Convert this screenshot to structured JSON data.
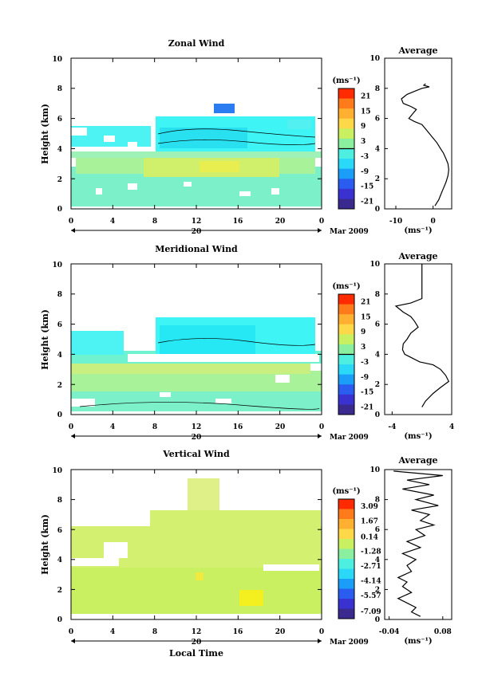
{
  "chart_data": [
    {
      "type": "heatmap",
      "title": "Zonal Wind",
      "ylabel": "Height (km)",
      "xlabel": "",
      "xlim": [
        0,
        24
      ],
      "ylim": [
        0,
        10
      ],
      "xticks": [
        "0",
        "4",
        "8",
        "12",
        "16",
        "20",
        "0"
      ],
      "yticks": [
        "0",
        "2",
        "4",
        "6",
        "8",
        "10"
      ],
      "date_label": "20",
      "month_label": "Mar 2009",
      "colorbar": {
        "unit": "(ms⁻¹)",
        "ticks": [
          "21",
          "15",
          "9",
          "3",
          "-3",
          "-9",
          "-15",
          "-21"
        ],
        "min": -24,
        "max": 24
      }
    },
    {
      "type": "line",
      "title": "Average",
      "xlabel": "(ms⁻¹)",
      "xlim": [
        -13,
        5
      ],
      "ylim": [
        0,
        10
      ],
      "xticks": [
        "-10",
        "0"
      ],
      "yticks": [
        "0",
        "2",
        "4",
        "6",
        "8",
        "10"
      ],
      "x": [
        -2,
        -2.5,
        -1,
        -3,
        -5,
        -7,
        -8.5,
        -8,
        -6,
        -4.5,
        -5.5,
        -6.5,
        -5,
        -3,
        -2,
        -1,
        0,
        1,
        2,
        2.8,
        3.5,
        4,
        4.2,
        4,
        3.5,
        3,
        2.5,
        2,
        1.5,
        1,
        0.5
      ],
      "y": [
        8.3,
        8.2,
        8.1,
        8.0,
        7.8,
        7.6,
        7.3,
        7.0,
        6.8,
        6.6,
        6.3,
        6.0,
        5.8,
        5.6,
        5.3,
        5.0,
        4.7,
        4.4,
        4.0,
        3.7,
        3.3,
        3.0,
        2.6,
        2.2,
        1.8,
        1.5,
        1.2,
        0.9,
        0.6,
        0.4,
        0.2
      ]
    },
    {
      "type": "heatmap",
      "title": "Meridional Wind",
      "ylabel": "Height (km)",
      "xlabel": "",
      "xlim": [
        0,
        24
      ],
      "ylim": [
        0,
        10
      ],
      "xticks": [
        "0",
        "4",
        "8",
        "12",
        "16",
        "20",
        "0"
      ],
      "yticks": [
        "0",
        "2",
        "4",
        "6",
        "8",
        "10"
      ],
      "date_label": "20",
      "month_label": "Mar 2009",
      "colorbar": {
        "unit": "(ms⁻¹)",
        "ticks": [
          "21",
          "15",
          "9",
          "3",
          "-3",
          "-9",
          "-15",
          "-21"
        ],
        "min": -24,
        "max": 24
      }
    },
    {
      "type": "line",
      "title": "Average",
      "xlabel": "(ms⁻¹)",
      "xlim": [
        -5,
        4
      ],
      "ylim": [
        0,
        10
      ],
      "xticks": [
        "-4",
        "4"
      ],
      "yticks": [
        "0",
        "2",
        "4",
        "6",
        "8",
        "10"
      ],
      "x": [
        0,
        0,
        0,
        0,
        -1.5,
        -3.5,
        -2.5,
        -1.5,
        -1,
        -0.5,
        -1.5,
        -2,
        -2.5,
        -2.6,
        -2.3,
        -1.5,
        -0.3,
        1.5,
        2.5,
        3.2,
        3.6,
        2.5,
        1.5,
        0.5,
        0
      ],
      "y": [
        10,
        9.5,
        8.5,
        7.7,
        7.4,
        7.2,
        6.8,
        6.5,
        6.2,
        5.8,
        5.4,
        5.0,
        4.7,
        4.3,
        4.0,
        3.8,
        3.5,
        3.3,
        3.0,
        2.6,
        2.2,
        1.8,
        1.4,
        0.9,
        0.5
      ]
    },
    {
      "type": "heatmap",
      "title": "Vertical Wind",
      "ylabel": "Height (km)",
      "xlabel": "Local Time",
      "xlim": [
        0,
        24
      ],
      "ylim": [
        0,
        10
      ],
      "xticks": [
        "0",
        "4",
        "8",
        "12",
        "16",
        "20",
        "0"
      ],
      "yticks": [
        "0",
        "2",
        "4",
        "6",
        "8",
        "10"
      ],
      "date_label": "20",
      "month_label": "Mar 2009",
      "colorbar": {
        "unit": "(ms⁻¹)",
        "ticks": [
          "3.09",
          "1.67",
          "0.14",
          "-1.28",
          "-2.71",
          "-4.14",
          "-5.57",
          "-7.09"
        ],
        "min": -7.8,
        "max": 3.8
      }
    },
    {
      "type": "line",
      "title": "Average",
      "xlabel": "(ms⁻¹)",
      "xlim": [
        -0.05,
        0.1
      ],
      "ylim": [
        0,
        10
      ],
      "xticks": [
        "-0.04",
        "0.08"
      ],
      "yticks": [
        "0",
        "2",
        "4",
        "6",
        "8",
        "10"
      ],
      "x": [
        -0.03,
        0.08,
        0.0,
        0.05,
        -0.01,
        0.06,
        0.02,
        0.07,
        0.01,
        0.05,
        0.03,
        0.06,
        0.02,
        0.04,
        0.0,
        0.03,
        -0.01,
        0.02,
        0.0,
        0.01,
        -0.02,
        0.0,
        -0.01,
        0.01,
        -0.02,
        0.0,
        0.02,
        0.01,
        0.03
      ],
      "y": [
        9.9,
        9.6,
        9.3,
        9.0,
        8.7,
        8.3,
        8.0,
        7.6,
        7.3,
        7.0,
        6.6,
        6.3,
        6.0,
        5.6,
        5.2,
        4.8,
        4.4,
        4.0,
        3.6,
        3.2,
        2.8,
        2.5,
        2.2,
        1.8,
        1.4,
        1.1,
        0.8,
        0.5,
        0.2
      ]
    }
  ]
}
